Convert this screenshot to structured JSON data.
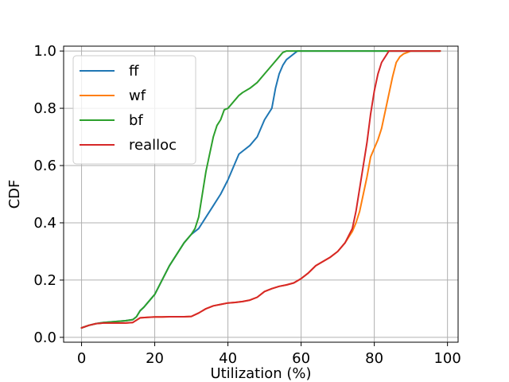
{
  "chart_data": {
    "type": "line",
    "title": "",
    "xlabel": "Utilization (%)",
    "ylabel": "CDF",
    "xlim": [
      -4.9,
      102.9
    ],
    "ylim": [
      -0.017,
      1.017
    ],
    "xticks": [
      0,
      20,
      40,
      60,
      80,
      100
    ],
    "xtick_labels": [
      "0",
      "20",
      "40",
      "60",
      "80",
      "100"
    ],
    "yticks": [
      0.0,
      0.2,
      0.4,
      0.6,
      0.8,
      1.0
    ],
    "ytick_labels": [
      "0.0",
      "0.2",
      "0.4",
      "0.6",
      "0.8",
      "1.0"
    ],
    "grid": true,
    "legend_position": "upper-left",
    "series": [
      {
        "name": "ff",
        "color": "#1f77b4",
        "x": [
          0,
          2,
          4,
          6,
          8,
          10,
          12,
          14,
          15,
          16,
          17,
          18,
          20,
          22,
          24,
          26,
          28,
          30,
          32,
          34,
          36,
          38,
          40,
          42,
          43,
          44,
          46,
          48,
          50,
          52,
          53,
          54,
          55,
          56,
          57,
          58,
          59,
          60,
          70,
          80,
          90,
          98
        ],
        "y": [
          0.033,
          0.042,
          0.048,
          0.052,
          0.054,
          0.056,
          0.058,
          0.062,
          0.072,
          0.093,
          0.105,
          0.12,
          0.15,
          0.2,
          0.25,
          0.29,
          0.33,
          0.36,
          0.38,
          0.42,
          0.46,
          0.5,
          0.55,
          0.61,
          0.64,
          0.65,
          0.67,
          0.7,
          0.76,
          0.8,
          0.87,
          0.92,
          0.95,
          0.97,
          0.98,
          0.99,
          1.0,
          1.0,
          1.0,
          1.0,
          1.0,
          1.0
        ]
      },
      {
        "name": "wf",
        "color": "#ff7f0e",
        "x": [
          0,
          2,
          4,
          6,
          8,
          10,
          12,
          14,
          15,
          16,
          18,
          20,
          22,
          24,
          26,
          28,
          30,
          32,
          34,
          36,
          38,
          40,
          42,
          44,
          46,
          48,
          50,
          52,
          54,
          56,
          58,
          60,
          62,
          64,
          66,
          68,
          70,
          72,
          74,
          75,
          76,
          77,
          78,
          79,
          80,
          81,
          82,
          83,
          84,
          85,
          86,
          87,
          88,
          89,
          90,
          92,
          95,
          98
        ],
        "y": [
          0.033,
          0.042,
          0.048,
          0.05,
          0.05,
          0.05,
          0.05,
          0.052,
          0.06,
          0.068,
          0.07,
          0.071,
          0.071,
          0.072,
          0.072,
          0.072,
          0.073,
          0.085,
          0.1,
          0.11,
          0.115,
          0.12,
          0.122,
          0.125,
          0.13,
          0.14,
          0.16,
          0.17,
          0.178,
          0.183,
          0.19,
          0.205,
          0.225,
          0.25,
          0.265,
          0.28,
          0.3,
          0.33,
          0.37,
          0.4,
          0.44,
          0.5,
          0.56,
          0.63,
          0.66,
          0.69,
          0.73,
          0.79,
          0.85,
          0.91,
          0.96,
          0.98,
          0.99,
          0.995,
          1.0,
          1.0,
          1.0,
          1.0
        ]
      },
      {
        "name": "bf",
        "color": "#2ca02c",
        "x": [
          0,
          2,
          4,
          6,
          8,
          10,
          12,
          14,
          15,
          16,
          17,
          18,
          20,
          22,
          24,
          26,
          28,
          30,
          31,
          32,
          33,
          34,
          35,
          36,
          37,
          38,
          39,
          40,
          41,
          42,
          43,
          44,
          46,
          48,
          50,
          52,
          54,
          55,
          56,
          58,
          60,
          70,
          80,
          90,
          98
        ],
        "y": [
          0.033,
          0.042,
          0.048,
          0.052,
          0.054,
          0.056,
          0.058,
          0.062,
          0.072,
          0.093,
          0.105,
          0.12,
          0.15,
          0.2,
          0.25,
          0.29,
          0.33,
          0.36,
          0.38,
          0.42,
          0.5,
          0.58,
          0.64,
          0.7,
          0.74,
          0.76,
          0.795,
          0.8,
          0.815,
          0.83,
          0.845,
          0.855,
          0.87,
          0.89,
          0.92,
          0.95,
          0.98,
          0.995,
          1.0,
          1.0,
          1.0,
          1.0,
          1.0,
          1.0,
          1.0
        ]
      },
      {
        "name": "realloc",
        "color": "#d62728",
        "x": [
          0,
          2,
          4,
          6,
          8,
          10,
          12,
          14,
          15,
          16,
          18,
          20,
          22,
          24,
          26,
          28,
          30,
          32,
          34,
          36,
          38,
          40,
          42,
          44,
          46,
          48,
          50,
          52,
          54,
          56,
          58,
          60,
          62,
          64,
          66,
          68,
          70,
          72,
          74,
          75,
          76,
          77,
          78,
          79,
          80,
          81,
          82,
          83,
          84,
          85,
          86,
          90,
          95,
          98
        ],
        "y": [
          0.033,
          0.042,
          0.048,
          0.05,
          0.05,
          0.05,
          0.05,
          0.052,
          0.06,
          0.068,
          0.07,
          0.071,
          0.071,
          0.072,
          0.072,
          0.072,
          0.073,
          0.085,
          0.1,
          0.11,
          0.115,
          0.12,
          0.122,
          0.125,
          0.13,
          0.14,
          0.16,
          0.17,
          0.178,
          0.183,
          0.19,
          0.205,
          0.225,
          0.25,
          0.265,
          0.28,
          0.3,
          0.33,
          0.38,
          0.44,
          0.52,
          0.6,
          0.68,
          0.78,
          0.86,
          0.92,
          0.96,
          0.98,
          1.0,
          1.0,
          1.0,
          1.0,
          1.0,
          1.0
        ]
      }
    ]
  }
}
